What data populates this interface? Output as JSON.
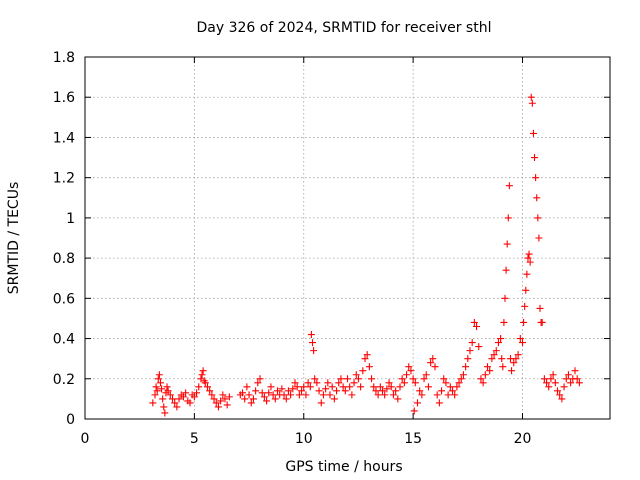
{
  "chart_data": {
    "type": "scatter",
    "title": "Day 326 of 2024, SRMTID for receiver sthl",
    "xlabel": "GPS time / hours",
    "ylabel": "SRMTID / TECUs",
    "xlim": [
      0,
      24
    ],
    "ylim": [
      0,
      1.8
    ],
    "xticks": [
      0,
      5,
      10,
      15,
      20
    ],
    "yticks": [
      0,
      0.2,
      0.4,
      0.6,
      0.8,
      1,
      1.2,
      1.4,
      1.6,
      1.8
    ],
    "xtick_labels": [
      "0",
      "5",
      "10",
      "15",
      "20"
    ],
    "ytick_labels": [
      "0",
      "0.2",
      "0.4",
      "0.6",
      "0.8",
      "1",
      "1.2",
      "1.4",
      "1.6",
      "1.8"
    ],
    "grid": true,
    "marker": "+",
    "marker_color": "#ff0000",
    "series": [
      {
        "name": "sthl",
        "points": [
          [
            3.1,
            0.08
          ],
          [
            3.2,
            0.12
          ],
          [
            3.25,
            0.16
          ],
          [
            3.3,
            0.14
          ],
          [
            3.35,
            0.2
          ],
          [
            3.4,
            0.22
          ],
          [
            3.45,
            0.18
          ],
          [
            3.5,
            0.15
          ],
          [
            3.55,
            0.1
          ],
          [
            3.6,
            0.06
          ],
          [
            3.65,
            0.03
          ],
          [
            3.7,
            0.13
          ],
          [
            3.75,
            0.16
          ],
          [
            3.8,
            0.14
          ],
          [
            3.9,
            0.12
          ],
          [
            4.0,
            0.1
          ],
          [
            4.1,
            0.08
          ],
          [
            4.2,
            0.06
          ],
          [
            4.3,
            0.1
          ],
          [
            4.4,
            0.12
          ],
          [
            4.5,
            0.11
          ],
          [
            4.6,
            0.13
          ],
          [
            4.7,
            0.09
          ],
          [
            4.8,
            0.08
          ],
          [
            4.9,
            0.12
          ],
          [
            5.0,
            0.11
          ],
          [
            5.1,
            0.13
          ],
          [
            5.2,
            0.16
          ],
          [
            5.3,
            0.2
          ],
          [
            5.35,
            0.22
          ],
          [
            5.4,
            0.24
          ],
          [
            5.45,
            0.19
          ],
          [
            5.5,
            0.18
          ],
          [
            5.6,
            0.16
          ],
          [
            5.7,
            0.14
          ],
          [
            5.8,
            0.12
          ],
          [
            5.9,
            0.1
          ],
          [
            6.0,
            0.08
          ],
          [
            6.1,
            0.06
          ],
          [
            6.2,
            0.09
          ],
          [
            6.3,
            0.12
          ],
          [
            6.4,
            0.1
          ],
          [
            6.5,
            0.07
          ],
          [
            6.6,
            0.11
          ],
          [
            7.1,
            0.12
          ],
          [
            7.2,
            0.13
          ],
          [
            7.3,
            0.1
          ],
          [
            7.4,
            0.16
          ],
          [
            7.5,
            0.12
          ],
          [
            7.6,
            0.08
          ],
          [
            7.7,
            0.1
          ],
          [
            7.8,
            0.14
          ],
          [
            7.9,
            0.18
          ],
          [
            8.0,
            0.2
          ],
          [
            8.1,
            0.13
          ],
          [
            8.2,
            0.11
          ],
          [
            8.3,
            0.09
          ],
          [
            8.4,
            0.13
          ],
          [
            8.5,
            0.16
          ],
          [
            8.6,
            0.12
          ],
          [
            8.7,
            0.1
          ],
          [
            8.8,
            0.14
          ],
          [
            8.9,
            0.12
          ],
          [
            9.0,
            0.15
          ],
          [
            9.1,
            0.12
          ],
          [
            9.2,
            0.1
          ],
          [
            9.3,
            0.14
          ],
          [
            9.4,
            0.12
          ],
          [
            9.5,
            0.15
          ],
          [
            9.6,
            0.18
          ],
          [
            9.7,
            0.16
          ],
          [
            9.8,
            0.12
          ],
          [
            9.9,
            0.14
          ],
          [
            10.0,
            0.16
          ],
          [
            10.1,
            0.12
          ],
          [
            10.2,
            0.18
          ],
          [
            10.3,
            0.16
          ],
          [
            10.35,
            0.42
          ],
          [
            10.4,
            0.38
          ],
          [
            10.45,
            0.34
          ],
          [
            10.5,
            0.2
          ],
          [
            10.6,
            0.18
          ],
          [
            10.7,
            0.14
          ],
          [
            10.8,
            0.08
          ],
          [
            10.9,
            0.12
          ],
          [
            11.0,
            0.15
          ],
          [
            11.1,
            0.18
          ],
          [
            11.2,
            0.12
          ],
          [
            11.3,
            0.16
          ],
          [
            11.4,
            0.1
          ],
          [
            11.5,
            0.14
          ],
          [
            11.6,
            0.18
          ],
          [
            11.7,
            0.2
          ],
          [
            11.8,
            0.16
          ],
          [
            11.9,
            0.14
          ],
          [
            12.0,
            0.2
          ],
          [
            12.1,
            0.16
          ],
          [
            12.2,
            0.12
          ],
          [
            12.3,
            0.18
          ],
          [
            12.4,
            0.22
          ],
          [
            12.5,
            0.2
          ],
          [
            12.6,
            0.16
          ],
          [
            12.7,
            0.24
          ],
          [
            12.8,
            0.3
          ],
          [
            12.9,
            0.32
          ],
          [
            13.0,
            0.26
          ],
          [
            13.1,
            0.2
          ],
          [
            13.2,
            0.16
          ],
          [
            13.3,
            0.14
          ],
          [
            13.4,
            0.12
          ],
          [
            13.5,
            0.16
          ],
          [
            13.6,
            0.14
          ],
          [
            13.7,
            0.12
          ],
          [
            13.8,
            0.15
          ],
          [
            13.9,
            0.18
          ],
          [
            14.0,
            0.16
          ],
          [
            14.1,
            0.12
          ],
          [
            14.2,
            0.14
          ],
          [
            14.3,
            0.1
          ],
          [
            14.4,
            0.16
          ],
          [
            14.5,
            0.2
          ],
          [
            14.6,
            0.18
          ],
          [
            14.7,
            0.22
          ],
          [
            14.8,
            0.26
          ],
          [
            14.9,
            0.24
          ],
          [
            15.0,
            0.2
          ],
          [
            15.05,
            0.04
          ],
          [
            15.1,
            0.18
          ],
          [
            15.2,
            0.08
          ],
          [
            15.3,
            0.14
          ],
          [
            15.4,
            0.12
          ],
          [
            15.5,
            0.2
          ],
          [
            15.6,
            0.22
          ],
          [
            15.7,
            0.16
          ],
          [
            15.8,
            0.28
          ],
          [
            15.9,
            0.3
          ],
          [
            16.0,
            0.26
          ],
          [
            16.1,
            0.12
          ],
          [
            16.2,
            0.08
          ],
          [
            16.3,
            0.14
          ],
          [
            16.4,
            0.2
          ],
          [
            16.5,
            0.18
          ],
          [
            16.6,
            0.12
          ],
          [
            16.7,
            0.16
          ],
          [
            16.8,
            0.14
          ],
          [
            16.9,
            0.12
          ],
          [
            17.0,
            0.16
          ],
          [
            17.1,
            0.18
          ],
          [
            17.2,
            0.2
          ],
          [
            17.3,
            0.22
          ],
          [
            17.4,
            0.26
          ],
          [
            17.5,
            0.3
          ],
          [
            17.6,
            0.34
          ],
          [
            17.7,
            0.38
          ],
          [
            17.8,
            0.48
          ],
          [
            17.9,
            0.46
          ],
          [
            18.0,
            0.36
          ],
          [
            18.1,
            0.2
          ],
          [
            18.2,
            0.18
          ],
          [
            18.3,
            0.22
          ],
          [
            18.4,
            0.26
          ],
          [
            18.5,
            0.24
          ],
          [
            18.6,
            0.3
          ],
          [
            18.7,
            0.32
          ],
          [
            18.8,
            0.34
          ],
          [
            18.9,
            0.38
          ],
          [
            19.0,
            0.4
          ],
          [
            19.05,
            0.3
          ],
          [
            19.1,
            0.26
          ],
          [
            19.15,
            0.48
          ],
          [
            19.2,
            0.6
          ],
          [
            19.25,
            0.74
          ],
          [
            19.3,
            0.87
          ],
          [
            19.35,
            1.0
          ],
          [
            19.4,
            1.16
          ],
          [
            19.45,
            0.3
          ],
          [
            19.5,
            0.24
          ],
          [
            19.6,
            0.28
          ],
          [
            19.7,
            0.3
          ],
          [
            19.8,
            0.32
          ],
          [
            19.9,
            0.4
          ],
          [
            20.0,
            0.38
          ],
          [
            20.05,
            0.48
          ],
          [
            20.1,
            0.56
          ],
          [
            20.15,
            0.64
          ],
          [
            20.2,
            0.72
          ],
          [
            20.25,
            0.8
          ],
          [
            20.3,
            0.82
          ],
          [
            20.35,
            0.78
          ],
          [
            20.4,
            1.6
          ],
          [
            20.45,
            1.57
          ],
          [
            20.5,
            1.42
          ],
          [
            20.55,
            1.3
          ],
          [
            20.6,
            1.2
          ],
          [
            20.65,
            1.1
          ],
          [
            20.7,
            1.0
          ],
          [
            20.75,
            0.9
          ],
          [
            20.8,
            0.55
          ],
          [
            20.85,
            0.48
          ],
          [
            20.9,
            0.48
          ],
          [
            21.0,
            0.2
          ],
          [
            21.1,
            0.18
          ],
          [
            21.2,
            0.16
          ],
          [
            21.3,
            0.2
          ],
          [
            21.4,
            0.22
          ],
          [
            21.5,
            0.18
          ],
          [
            21.6,
            0.14
          ],
          [
            21.7,
            0.12
          ],
          [
            21.8,
            0.1
          ],
          [
            21.9,
            0.16
          ],
          [
            22.0,
            0.2
          ],
          [
            22.1,
            0.22
          ],
          [
            22.2,
            0.18
          ],
          [
            22.3,
            0.2
          ],
          [
            22.4,
            0.24
          ],
          [
            22.5,
            0.2
          ],
          [
            22.6,
            0.18
          ]
        ]
      }
    ]
  }
}
